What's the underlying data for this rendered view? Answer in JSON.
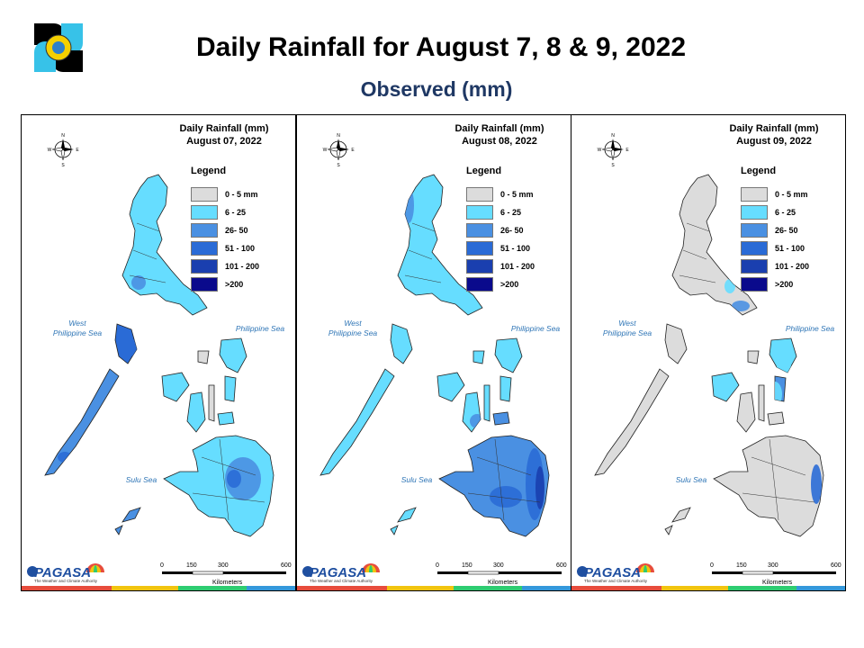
{
  "header": {
    "title": "Daily Rainfall for August 7, 8 & 9, 2022",
    "subtitle": "Observed (mm)"
  },
  "legend": {
    "title": "Legend",
    "items": [
      {
        "label": "0 - 5 mm",
        "color": "#dcdcdc"
      },
      {
        "label": "6 - 25",
        "color": "#66ddff"
      },
      {
        "label": "26- 50",
        "color": "#4a90e2"
      },
      {
        "label": "51 - 100",
        "color": "#2a6bd6"
      },
      {
        "label": "101 - 200",
        "color": "#1a3faf"
      },
      {
        "label": ">200",
        "color": "#0a0a8c"
      }
    ]
  },
  "panels": [
    {
      "title_line1": "Daily Rainfall (mm)",
      "title_line2": "August 07, 2022"
    },
    {
      "title_line1": "Daily Rainfall (mm)",
      "title_line2": "August 08, 2022"
    },
    {
      "title_line1": "Daily Rainfall (mm)",
      "title_line2": "August 09, 2022"
    }
  ],
  "labels": {
    "west_sea_line1": "West",
    "west_sea_line2": "Philippine Sea",
    "philippine_sea": "Philippine Sea",
    "sulu_sea": "Sulu Sea",
    "compass_n": "N",
    "compass_s": "S",
    "compass_e": "E",
    "compass_w": "W"
  },
  "scale_bar": {
    "ticks": [
      "0",
      "150",
      "300",
      "600"
    ],
    "unit": "Kilometers"
  },
  "branding": {
    "agency": "PAGASA",
    "tagline": "The Weather and Climate Authority"
  },
  "footer_colors": [
    "#e74c3c",
    "#f1c40f",
    "#2ecc71",
    "#3498db"
  ]
}
